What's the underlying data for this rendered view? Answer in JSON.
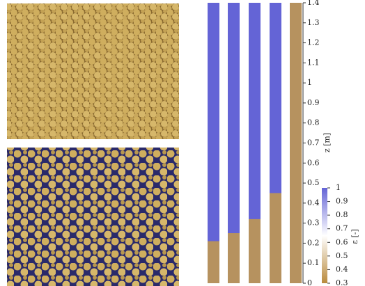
{
  "chart_data": {
    "type": "bed",
    "categories": [
      null,
      null,
      null,
      null,
      null
    ],
    "values": [
      0.21,
      0.25,
      0.32,
      0.45,
      1.4
    ],
    "ylabel": "z [m]",
    "ylim": [
      0,
      1.4
    ],
    "yticks": [
      0,
      0.1,
      0.2,
      0.3,
      0.4,
      0.5,
      0.6,
      0.7,
      0.8,
      0.9,
      1,
      1.1,
      1.2,
      1.3,
      1.4
    ],
    "colorbar": {
      "label": "ε [-]",
      "lim": [
        0.3,
        1
      ],
      "ticks": [
        0.3,
        0.4,
        0.5,
        0.6,
        0.7,
        0.8,
        0.9,
        1
      ],
      "colors": [
        "#b98a3c",
        "#ffffff",
        "#6464d6"
      ]
    },
    "bed_color": "#c49a4a",
    "fluid_color": "#6464d6"
  }
}
